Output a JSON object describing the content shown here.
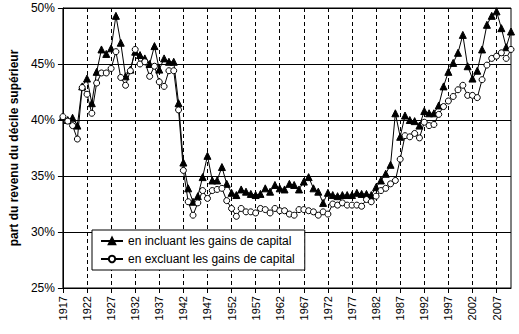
{
  "chart_data": {
    "type": "line",
    "y_label": "part du revenu du décile supérieur",
    "x": [
      1917,
      1918,
      1919,
      1920,
      1921,
      1922,
      1923,
      1924,
      1925,
      1926,
      1927,
      1928,
      1929,
      1930,
      1931,
      1932,
      1933,
      1934,
      1935,
      1936,
      1937,
      1938,
      1939,
      1940,
      1941,
      1942,
      1943,
      1944,
      1945,
      1946,
      1947,
      1948,
      1949,
      1950,
      1951,
      1952,
      1953,
      1954,
      1955,
      1956,
      1957,
      1958,
      1959,
      1960,
      1961,
      1962,
      1963,
      1964,
      1965,
      1966,
      1967,
      1968,
      1969,
      1970,
      1971,
      1972,
      1973,
      1974,
      1975,
      1976,
      1977,
      1978,
      1979,
      1980,
      1981,
      1982,
      1983,
      1984,
      1985,
      1986,
      1987,
      1988,
      1989,
      1990,
      1991,
      1992,
      1993,
      1994,
      1995,
      1996,
      1997,
      1998,
      1999,
      2000,
      2001,
      2002,
      2003,
      2004,
      2005,
      2006,
      2007,
      2008,
      2009,
      2010
    ],
    "series": [
      {
        "name": "en incluant les gains de capital",
        "color": "#000000",
        "marker": "triangle",
        "values": [
          40.3,
          40.0,
          40.2,
          39.5,
          43.0,
          43.7,
          41.5,
          44.3,
          46.3,
          45.9,
          46.4,
          49.3,
          46.9,
          43.9,
          44.5,
          46.1,
          45.8,
          45.5,
          45.0,
          46.6,
          44.5,
          45.5,
          45.2,
          45.2,
          41.5,
          36.2,
          33.9,
          32.7,
          33.2,
          34.9,
          36.8,
          34.6,
          34.6,
          35.8,
          34.3,
          33.5,
          33.3,
          33.8,
          33.6,
          33.4,
          33.3,
          33.4,
          33.9,
          33.6,
          34.2,
          33.9,
          33.8,
          34.3,
          34.2,
          33.8,
          34.5,
          34.9,
          33.9,
          33.6,
          32.6,
          33.5,
          33.3,
          33.2,
          33.3,
          33.3,
          33.3,
          33.5,
          33.4,
          33.4,
          33.3,
          34.0,
          34.6,
          35.2,
          36.0,
          40.6,
          38.5,
          40.4,
          40.0,
          39.9,
          39.5,
          40.8,
          40.6,
          40.6,
          41.3,
          43.0,
          44.3,
          45.1,
          46.0,
          47.6,
          44.8,
          43.7,
          44.4,
          46.3,
          48.5,
          49.3,
          49.7,
          48.2,
          46.5,
          47.9
        ]
      },
      {
        "name": "en excluant les gains de capital",
        "color": "#000000",
        "marker": "hollow_circle",
        "values": [
          40.3,
          39.9,
          39.5,
          38.3,
          42.9,
          42.3,
          40.6,
          43.3,
          44.2,
          44.2,
          44.6,
          46.1,
          43.8,
          43.1,
          44.4,
          46.3,
          45.0,
          45.2,
          43.9,
          44.8,
          43.4,
          43.0,
          44.4,
          44.4,
          40.9,
          35.5,
          32.7,
          31.5,
          32.6,
          33.7,
          33.0,
          33.7,
          33.8,
          33.9,
          32.8,
          32.1,
          31.4,
          32.1,
          31.8,
          31.8,
          31.7,
          32.1,
          32.0,
          31.7,
          32.1,
          31.9,
          31.9,
          31.6,
          31.5,
          32.0,
          32.0,
          31.9,
          31.8,
          31.5,
          31.8,
          31.6,
          32.5,
          32.4,
          32.6,
          32.4,
          32.4,
          32.4,
          32.3,
          32.9,
          32.7,
          33.2,
          33.7,
          33.9,
          34.3,
          34.6,
          36.5,
          38.6,
          38.5,
          38.8,
          38.4,
          39.8,
          39.5,
          39.6,
          40.5,
          41.2,
          41.7,
          42.1,
          42.7,
          43.1,
          42.2,
          42.2,
          42.0,
          43.6,
          44.9,
          45.5,
          45.7,
          46.0,
          45.5,
          46.3
        ]
      }
    ],
    "xlim": [
      1917,
      2010
    ],
    "xticks": [
      1917,
      1922,
      1927,
      1932,
      1937,
      1942,
      1947,
      1952,
      1957,
      1962,
      1967,
      1972,
      1977,
      1982,
      1987,
      1992,
      1997,
      2002,
      2007
    ],
    "ylim": [
      25,
      50
    ],
    "yticks": [
      {
        "value": 25,
        "label": "25%"
      },
      {
        "value": 30,
        "label": "30%"
      },
      {
        "value": 35,
        "label": "35%"
      },
      {
        "value": 40,
        "label": "40%"
      },
      {
        "value": 45,
        "label": "45%"
      },
      {
        "value": 50,
        "label": "50%"
      }
    ],
    "grid": true,
    "legend": "lower left"
  }
}
